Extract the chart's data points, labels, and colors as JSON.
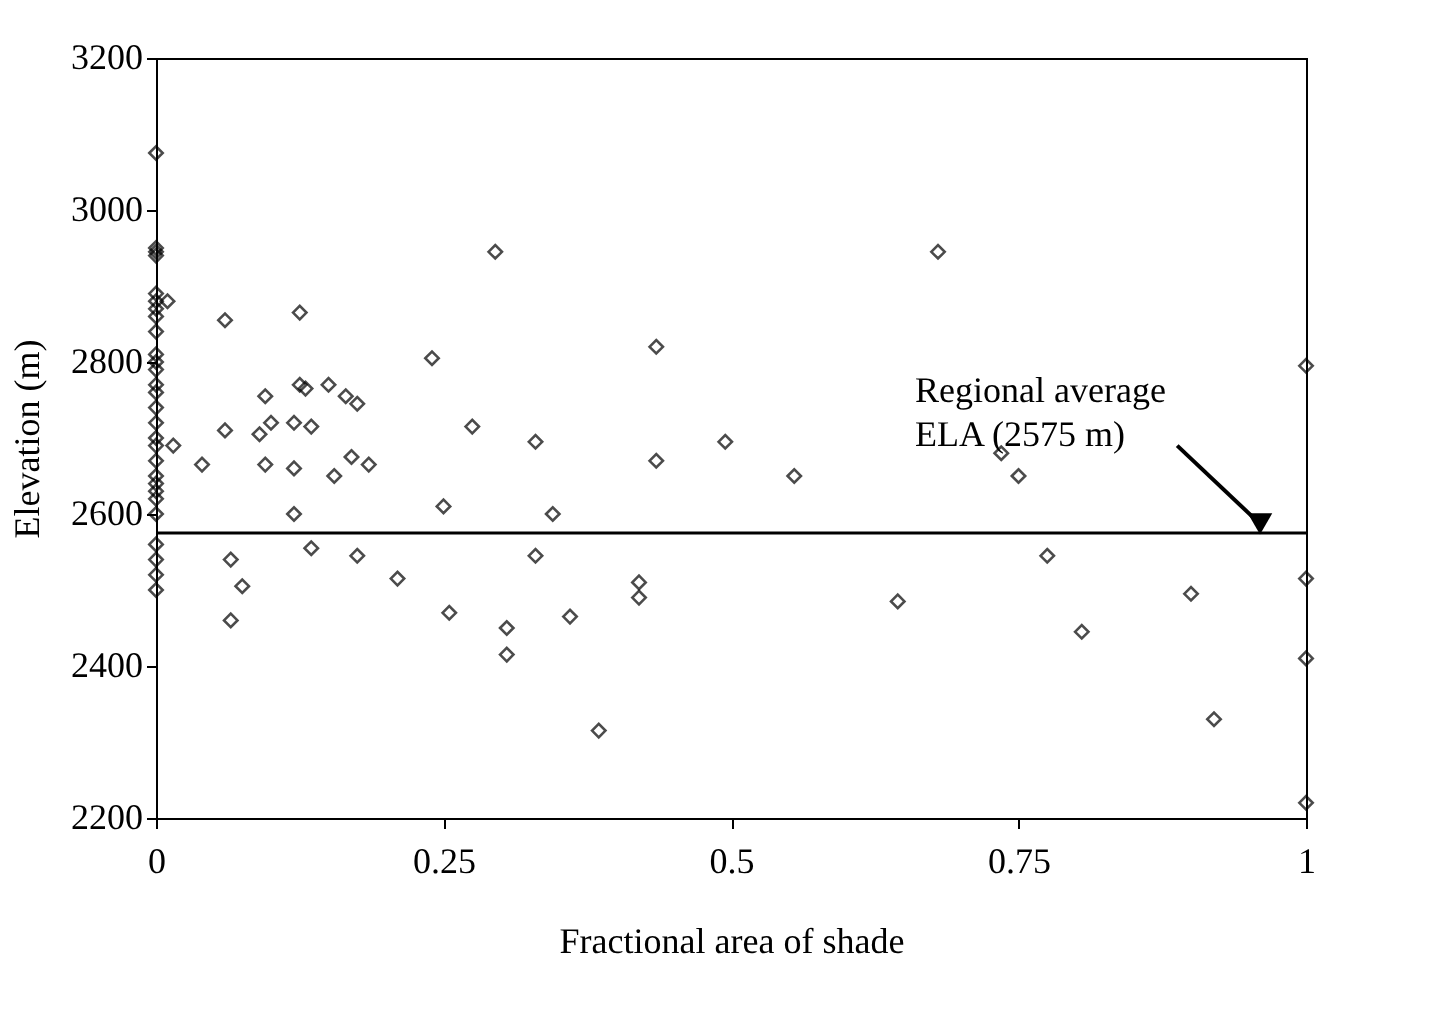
{
  "chart_data": {
    "type": "scatter",
    "xlabel": "Fractional area of shade",
    "ylabel": "Elevation (m)",
    "x": [
      0,
      0,
      0,
      0,
      0,
      0,
      0,
      0,
      0,
      0,
      0,
      0,
      0,
      0,
      0,
      0,
      0,
      0,
      0,
      0,
      0,
      0,
      0,
      0,
      0,
      0,
      0,
      0,
      0.01,
      0.015,
      0.04,
      0.06,
      0.06,
      0.065,
      0.065,
      0.075,
      0.09,
      0.095,
      0.095,
      0.1,
      0.12,
      0.12,
      0.12,
      0.125,
      0.125,
      0.13,
      0.135,
      0.135,
      0.15,
      0.155,
      0.165,
      0.17,
      0.175,
      0.175,
      0.185,
      0.21,
      0.24,
      0.25,
      0.255,
      0.275,
      0.295,
      0.305,
      0.305,
      0.33,
      0.33,
      0.345,
      0.36,
      0.385,
      0.42,
      0.42,
      0.435,
      0.435,
      0.495,
      0.555,
      0.645,
      0.68,
      0.735,
      0.75,
      0.775,
      0.805,
      0.9,
      0.92,
      1,
      1,
      1,
      1
    ],
    "values": [
      3075,
      2950,
      2945,
      2940,
      2890,
      2880,
      2870,
      2860,
      2840,
      2810,
      2800,
      2790,
      2770,
      2760,
      2740,
      2720,
      2700,
      2690,
      2670,
      2650,
      2640,
      2630,
      2620,
      2600,
      2560,
      2540,
      2520,
      2500,
      2880,
      2690,
      2665,
      2855,
      2710,
      2540,
      2460,
      2505,
      2705,
      2755,
      2665,
      2720,
      2720,
      2660,
      2600,
      2865,
      2770,
      2765,
      2715,
      2555,
      2770,
      2650,
      2755,
      2675,
      2745,
      2545,
      2665,
      2515,
      2805,
      2610,
      2470,
      2715,
      2945,
      2450,
      2415,
      2695,
      2545,
      2600,
      2465,
      2315,
      2490,
      2510,
      2820,
      2670,
      2695,
      2650,
      2485,
      2945,
      2680,
      2650,
      2545,
      2445,
      2495,
      2330,
      2795,
      2515,
      2410,
      2220
    ],
    "color": "#000000",
    "marker": "diamond",
    "grid": false,
    "xlim": [
      0,
      1
    ],
    "xticks": [
      0,
      0.25,
      0.5,
      0.75,
      1
    ],
    "ylim": [
      2200,
      3200
    ],
    "yticks": [
      2200,
      2400,
      2600,
      2800,
      3000,
      3200
    ],
    "ref_lines": [
      {
        "axis": "y",
        "value": 2575,
        "label": "Regional average ELA (2575 m)",
        "color": "#000000"
      }
    ]
  }
}
